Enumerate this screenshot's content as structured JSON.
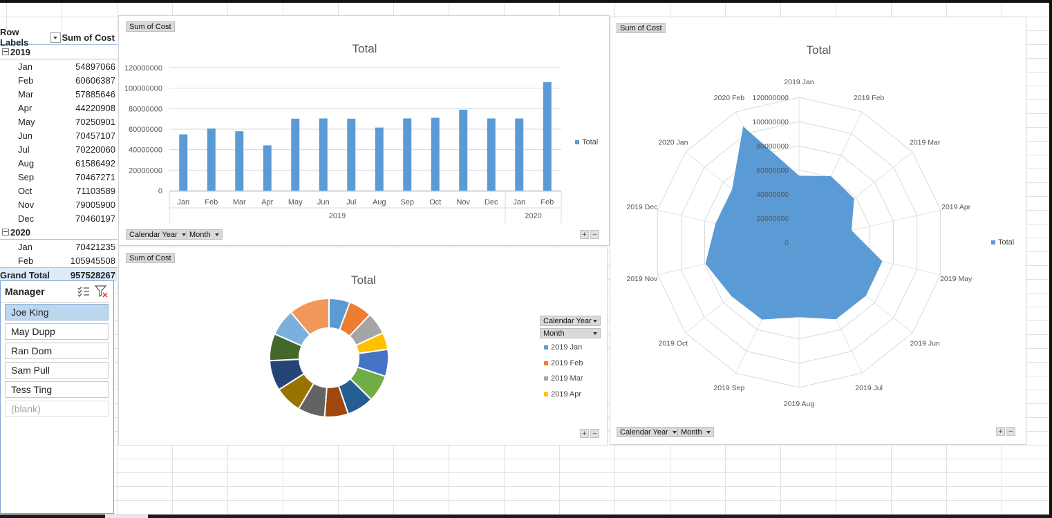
{
  "pivot": {
    "row_labels_header": "Row Labels",
    "sum_header": "Sum of Cost",
    "years": [
      {
        "year": "2019",
        "months": [
          {
            "label": "Jan",
            "value": "54897066"
          },
          {
            "label": "Feb",
            "value": "60606387"
          },
          {
            "label": "Mar",
            "value": "57885646"
          },
          {
            "label": "Apr",
            "value": "44220908"
          },
          {
            "label": "May",
            "value": "70250901"
          },
          {
            "label": "Jun",
            "value": "70457107"
          },
          {
            "label": "Jul",
            "value": "70220060"
          },
          {
            "label": "Aug",
            "value": "61586492"
          },
          {
            "label": "Sep",
            "value": "70467271"
          },
          {
            "label": "Oct",
            "value": "71103589"
          },
          {
            "label": "Nov",
            "value": "79005900"
          },
          {
            "label": "Dec",
            "value": "70460197"
          }
        ]
      },
      {
        "year": "2020",
        "months": [
          {
            "label": "Jan",
            "value": "70421235"
          },
          {
            "label": "Feb",
            "value": "105945508"
          }
        ]
      }
    ],
    "grand_total_label": "Grand Total",
    "grand_total_value": "957528267"
  },
  "slicer": {
    "title": "Manager",
    "items": [
      {
        "label": "Joe King",
        "state": "selected"
      },
      {
        "label": "May Dupp",
        "state": "normal"
      },
      {
        "label": "Ran Dom",
        "state": "normal"
      },
      {
        "label": "Sam Pull",
        "state": "normal"
      },
      {
        "label": "Tess Ting",
        "state": "normal"
      },
      {
        "label": "(blank)",
        "state": "disabled"
      }
    ],
    "icons": [
      "multi-select-icon",
      "clear-filter-icon"
    ]
  },
  "charts": {
    "bar": {
      "value_button": "Sum of Cost",
      "title": "Total",
      "legend": "Total",
      "axis_buttons": [
        "Calendar Year",
        "Month"
      ],
      "color": "#5b9bd5"
    },
    "donut": {
      "value_button": "Sum of Cost",
      "title": "Total",
      "legend_buttons": [
        "Calendar Year",
        "Month"
      ],
      "legend_items": [
        "2019 Jan",
        "2019 Feb",
        "2019 Mar",
        "2019 Apr"
      ]
    },
    "radar": {
      "value_button": "Sum of Cost",
      "title": "Total",
      "legend": "Total",
      "axis_buttons": [
        "Calendar Year",
        "Month"
      ],
      "color": "#5b9bd5"
    }
  },
  "chart_data": [
    {
      "type": "bar",
      "title": "Total",
      "categories": [
        "Jan",
        "Feb",
        "Mar",
        "Apr",
        "May",
        "Jun",
        "Jul",
        "Aug",
        "Sep",
        "Oct",
        "Nov",
        "Dec",
        "Jan",
        "Feb"
      ],
      "groups": [
        {
          "label": "2019",
          "count": 12
        },
        {
          "label": "2020",
          "count": 2
        }
      ],
      "series": [
        {
          "name": "Total",
          "values": [
            54897066,
            60606387,
            57885646,
            44220908,
            70250901,
            70457107,
            70220060,
            61586492,
            70467271,
            71103589,
            79005900,
            70460197,
            70421235,
            105945508
          ]
        }
      ],
      "ylim": [
        0,
        120000000
      ],
      "yticks": [
        "120000000",
        "100000000",
        "80000000",
        "60000000",
        "40000000",
        "20000000",
        "0"
      ],
      "grid": true,
      "legend": "right"
    },
    {
      "type": "pie",
      "subtype": "donut",
      "title": "Total",
      "categories": [
        "2019 Jan",
        "2019 Feb",
        "2019 Mar",
        "2019 Apr",
        "2019 May",
        "2019 Jun",
        "2019 Jul",
        "2019 Aug",
        "2019 Sep",
        "2019 Oct",
        "2019 Nov",
        "2019 Dec",
        "2020 Jan",
        "2020 Feb"
      ],
      "values": [
        54897066,
        60606387,
        57885646,
        44220908,
        70250901,
        70457107,
        70220060,
        61586492,
        70467271,
        71103589,
        79005900,
        70460197,
        70421235,
        105945508
      ],
      "colors": [
        "#5b9bd5",
        "#ed7d31",
        "#a5a5a5",
        "#ffc000",
        "#4472c4",
        "#70ad47",
        "#255e91",
        "#9e480e",
        "#636363",
        "#997300",
        "#264478",
        "#43682b",
        "#7cafdd",
        "#f1975a"
      ],
      "legend": "right"
    },
    {
      "type": "radar",
      "title": "Total",
      "categories": [
        "2019 Jan",
        "2019 Feb",
        "2019 Mar",
        "2019 Apr",
        "2019 May",
        "2019 Jun",
        "2019 Jul",
        "2019 Aug",
        "2019 Sep",
        "2019 Oct",
        "2019 Nov",
        "2019 Dec",
        "2020 Jan",
        "2020 Feb"
      ],
      "series": [
        {
          "name": "Total",
          "values": [
            54897066,
            60606387,
            57885646,
            44220908,
            70250901,
            70457107,
            70220060,
            61586492,
            70467271,
            71103589,
            79005900,
            70460197,
            70421235,
            105945508
          ]
        }
      ],
      "rlim": [
        0,
        120000000
      ],
      "rticks": [
        "0",
        "20000000",
        "40000000",
        "60000000",
        "80000000",
        "100000000",
        "120000000"
      ],
      "legend": "right"
    }
  ]
}
